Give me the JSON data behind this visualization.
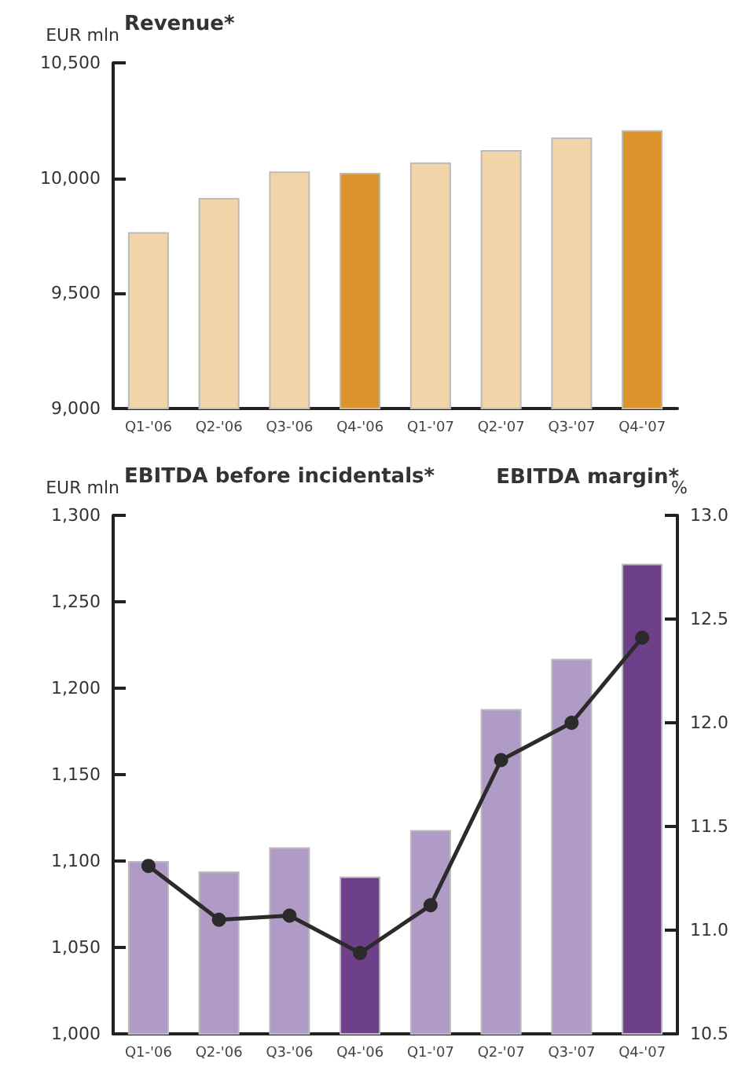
{
  "chart_data": [
    {
      "type": "bar",
      "title": "Revenue*",
      "ylabel": "EUR mln",
      "categories": [
        "Q1-'06",
        "Q2-'06",
        "Q3-'06",
        "Q4-'06",
        "Q1-'07",
        "Q2-'07",
        "Q3-'07",
        "Q4-'07"
      ],
      "series": [
        {
          "values": [
            9765,
            9914,
            10029,
            10023,
            10068,
            10122,
            10176,
            10208
          ],
          "colors": [
            "#f1d4a7",
            "#f1d4a7",
            "#f1d4a7",
            "#dc932c",
            "#f1d4a7",
            "#f1d4a7",
            "#f1d4a7",
            "#dc932c"
          ]
        }
      ],
      "ylim": [
        9000,
        10500
      ],
      "yticks": [
        {
          "value": 9000,
          "label": "9,000"
        },
        {
          "value": 9500,
          "label": "9,500"
        },
        {
          "value": 10000,
          "label": "10,000"
        },
        {
          "value": 10500,
          "label": "10,500"
        }
      ],
      "grid": false,
      "legend": false
    },
    {
      "type": "bar",
      "title": "EBITDA before incidentals*",
      "ylabel": "EUR mln",
      "y2label": "%",
      "categories": [
        "Q1-'06",
        "Q2-'06",
        "Q3-'06",
        "Q4-'06",
        "Q1-'07",
        "Q2-'07",
        "Q3-'07",
        "Q4-'07"
      ],
      "series": [
        {
          "values": [
            1100,
            1094,
            1108,
            1091,
            1118,
            1188,
            1217,
            1272
          ],
          "colors": [
            "#b09ac6",
            "#b09ac6",
            "#b09ac6",
            "#6e4089",
            "#b09ac6",
            "#b09ac6",
            "#b09ac6",
            "#6e4089"
          ]
        },
        {
          "type": "line",
          "axis": "y2",
          "name": "EBITDA margin*",
          "color": "#2b2b2b",
          "values": [
            11.31,
            11.05,
            11.07,
            10.89,
            11.12,
            11.82,
            12.0,
            12.41
          ]
        }
      ],
      "ylim": [
        1000,
        1300
      ],
      "yticks": [
        {
          "value": 1000,
          "label": "1,000"
        },
        {
          "value": 1050,
          "label": "1,050"
        },
        {
          "value": 1100,
          "label": "1,100"
        },
        {
          "value": 1150,
          "label": "1,150"
        },
        {
          "value": 1200,
          "label": "1,200"
        },
        {
          "value": 1250,
          "label": "1,250"
        },
        {
          "value": 1300,
          "label": "1,300"
        }
      ],
      "y2lim": [
        10.5,
        13.0
      ],
      "y2ticks": [
        {
          "value": 10.5,
          "label": "10.5"
        },
        {
          "value": 11,
          "label": "11.0"
        },
        {
          "value": 11.5,
          "label": "11.5"
        },
        {
          "value": 12,
          "label": "12.0"
        },
        {
          "value": 12.5,
          "label": "12.5"
        },
        {
          "value": 13,
          "label": "13.0"
        }
      ],
      "grid": false,
      "legend": "top right",
      "marker": "circle",
      "line_style": "solid"
    }
  ]
}
